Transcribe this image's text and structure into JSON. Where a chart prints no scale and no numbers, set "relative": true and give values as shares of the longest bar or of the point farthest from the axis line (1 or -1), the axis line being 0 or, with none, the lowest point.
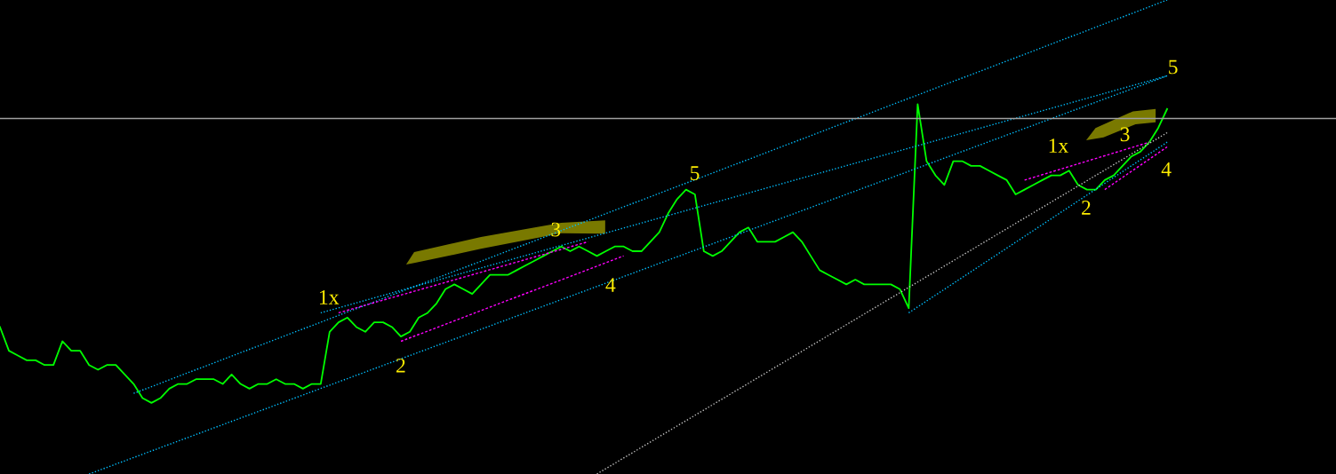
{
  "chart_data": {
    "type": "line",
    "relative": true,
    "categories": [
      null,
      null,
      null,
      null,
      null,
      null,
      null,
      null,
      null,
      null,
      null,
      null,
      null,
      null,
      null,
      null,
      null,
      null,
      null,
      null,
      null,
      null,
      null,
      null,
      null,
      null,
      null,
      null,
      null,
      null,
      null,
      null,
      null,
      null,
      null,
      null,
      null,
      null,
      null,
      null,
      null,
      null,
      null,
      null,
      null,
      null,
      null,
      null,
      null,
      null,
      null,
      null,
      null,
      null,
      null,
      null,
      null,
      null,
      null,
      null,
      null,
      null,
      null,
      null,
      null,
      null,
      null,
      null,
      null,
      null,
      null,
      null,
      null,
      null,
      null,
      null,
      null,
      null,
      null,
      null,
      null,
      null,
      null,
      null,
      null,
      null,
      null,
      null,
      null,
      null,
      null,
      null,
      null,
      null,
      null,
      null,
      null,
      null,
      null,
      null,
      null,
      null,
      null,
      null,
      null,
      null,
      null,
      null,
      null,
      null,
      null,
      null,
      null,
      null,
      null,
      null,
      null,
      null,
      null,
      null,
      null,
      null,
      null,
      null,
      null,
      null,
      null,
      null,
      null,
      null,
      null,
      null
    ],
    "series": [
      {
        "color": "#00ff00",
        "line_style": "solid",
        "values": [
          0.31,
          0.26,
          0.25,
          0.24,
          0.24,
          0.23,
          0.23,
          0.28,
          0.26,
          0.26,
          0.23,
          0.22,
          0.23,
          0.23,
          0.21,
          0.19,
          0.16,
          0.15,
          0.16,
          0.18,
          0.19,
          0.19,
          0.2,
          0.2,
          0.2,
          0.19,
          0.21,
          0.19,
          0.18,
          0.19,
          0.19,
          0.2,
          0.19,
          0.19,
          0.18,
          0.19,
          0.19,
          0.3,
          0.32,
          0.33,
          0.31,
          0.3,
          0.32,
          0.32,
          0.31,
          0.29,
          0.3,
          0.33,
          0.34,
          0.36,
          0.39,
          0.4,
          0.39,
          0.38,
          0.4,
          0.42,
          0.42,
          0.42,
          0.43,
          0.44,
          0.45,
          0.46,
          0.47,
          0.48,
          0.47,
          0.48,
          0.47,
          0.46,
          0.47,
          0.48,
          0.48,
          0.47,
          0.47,
          0.49,
          0.51,
          0.55,
          0.58,
          0.6,
          0.59,
          0.47,
          0.46,
          0.47,
          0.49,
          0.51,
          0.52,
          0.49,
          0.49,
          0.49,
          0.5,
          0.51,
          0.49,
          0.46,
          0.43,
          0.42,
          0.41,
          0.4,
          0.41,
          0.4,
          0.4,
          0.4,
          0.4,
          0.39,
          0.35,
          0.78,
          0.66,
          0.63,
          0.61,
          0.66,
          0.66,
          0.65,
          0.65,
          0.64,
          0.63,
          0.62,
          0.59,
          0.6,
          0.61,
          0.62,
          0.63,
          0.63,
          0.64,
          0.61,
          0.6,
          0.6,
          0.62,
          0.63,
          0.65,
          0.67,
          0.68,
          0.7,
          0.73,
          0.77
        ]
      },
      {
        "color": "#00bfff",
        "line_style": "dotted",
        "values": [
          null,
          null,
          null,
          null,
          null,
          null,
          null,
          null,
          null,
          null,
          null,
          null,
          null,
          null,
          null,
          0.17,
          null,
          null,
          null,
          null,
          null,
          null,
          null,
          null,
          null,
          null,
          null,
          null,
          null,
          null,
          null,
          null,
          null,
          null,
          null,
          null,
          null,
          null,
          null,
          null,
          null,
          null,
          null,
          null,
          null,
          null,
          null,
          null,
          null,
          null,
          null,
          null,
          null,
          null,
          null,
          null,
          null,
          null,
          null,
          null,
          null,
          null,
          null,
          null,
          null,
          null,
          null,
          null,
          null,
          null,
          null,
          null,
          null,
          null,
          null,
          null,
          null,
          null,
          null,
          null,
          null,
          null,
          null,
          null,
          null,
          null,
          null,
          null,
          null,
          null,
          null,
          null,
          null,
          null,
          null,
          null,
          null,
          null,
          null,
          null,
          null,
          null,
          null,
          null,
          null,
          null,
          null,
          null,
          null,
          null,
          null,
          null,
          null,
          null,
          null,
          null,
          null,
          null,
          null,
          null,
          null,
          null,
          null,
          null,
          null,
          null,
          null,
          null,
          null,
          null,
          null,
          1.0
        ]
      },
      {
        "color": "#00bfff",
        "line_style": "dotted",
        "values": [
          null,
          null,
          null,
          null,
          null,
          null,
          null,
          null,
          null,
          null,
          null,
          null,
          null,
          null,
          null,
          null,
          null,
          null,
          null,
          null,
          null,
          null,
          null,
          null,
          null,
          null,
          null,
          null,
          null,
          null,
          null,
          null,
          null,
          null,
          null,
          null,
          0.34,
          null,
          null,
          null,
          null,
          null,
          null,
          null,
          null,
          null,
          null,
          null,
          null,
          null,
          null,
          null,
          null,
          null,
          null,
          null,
          null,
          null,
          null,
          null,
          null,
          null,
          null,
          null,
          null,
          null,
          null,
          null,
          null,
          null,
          null,
          null,
          null,
          null,
          null,
          null,
          null,
          null,
          null,
          null,
          null,
          null,
          null,
          null,
          null,
          null,
          null,
          null,
          null,
          null,
          null,
          null,
          null,
          null,
          null,
          null,
          null,
          null,
          null,
          null,
          null,
          null,
          null,
          null,
          null,
          null,
          null,
          null,
          null,
          null,
          null,
          null,
          null,
          null,
          null,
          null,
          null,
          null,
          null,
          null,
          null,
          null,
          null,
          null,
          null,
          null,
          null,
          null,
          null,
          null,
          null,
          0.84
        ]
      },
      {
        "color": "#00bfff",
        "line_style": "dotted",
        "values": [
          null,
          null,
          null,
          null,
          null,
          null,
          null,
          null,
          null,
          null,
          0.0,
          null,
          null,
          null,
          null,
          null,
          null,
          null,
          null,
          null,
          null,
          null,
          null,
          null,
          null,
          null,
          null,
          null,
          null,
          null,
          null,
          null,
          null,
          null,
          null,
          null,
          null,
          null,
          null,
          null,
          null,
          null,
          null,
          null,
          null,
          null,
          null,
          null,
          null,
          null,
          null,
          null,
          null,
          null,
          null,
          null,
          null,
          null,
          null,
          null,
          null,
          null,
          null,
          null,
          null,
          null,
          null,
          null,
          null,
          null,
          null,
          null,
          null,
          null,
          null,
          null,
          null,
          null,
          null,
          null,
          null,
          null,
          null,
          null,
          null,
          null,
          null,
          null,
          null,
          null,
          null,
          null,
          null,
          null,
          null,
          null,
          null,
          null,
          null,
          null,
          null,
          null,
          null,
          null,
          null,
          null,
          null,
          null,
          null,
          null,
          null,
          null,
          null,
          null,
          null,
          null,
          null,
          null,
          null,
          null,
          null,
          null,
          null,
          null,
          null,
          null,
          null,
          null,
          null,
          null,
          null,
          0.84
        ]
      },
      {
        "color": "#c0c0c0",
        "line_style": "dotted",
        "values": [
          null,
          null,
          null,
          null,
          null,
          null,
          null,
          null,
          null,
          null,
          null,
          null,
          null,
          null,
          null,
          null,
          null,
          null,
          null,
          null,
          null,
          null,
          null,
          null,
          null,
          null,
          null,
          null,
          null,
          null,
          null,
          null,
          null,
          null,
          null,
          null,
          null,
          null,
          null,
          null,
          null,
          null,
          null,
          null,
          null,
          null,
          null,
          null,
          null,
          null,
          null,
          null,
          null,
          null,
          null,
          null,
          null,
          null,
          null,
          null,
          null,
          null,
          null,
          null,
          null,
          null,
          null,
          0.0,
          null,
          null,
          null,
          null,
          null,
          null,
          null,
          null,
          null,
          null,
          null,
          null,
          null,
          null,
          null,
          null,
          null,
          null,
          null,
          null,
          null,
          null,
          null,
          null,
          null,
          null,
          null,
          null,
          null,
          null,
          null,
          null,
          null,
          null,
          null,
          null,
          null,
          null,
          null,
          null,
          null,
          null,
          null,
          null,
          null,
          null,
          null,
          null,
          null,
          null,
          null,
          null,
          null,
          null,
          null,
          null,
          null,
          null,
          null,
          null,
          null,
          null,
          null,
          0.72
        ]
      },
      {
        "color": "#00bfff",
        "line_style": "dotted",
        "values": [
          null,
          null,
          null,
          null,
          null,
          null,
          null,
          null,
          null,
          null,
          null,
          null,
          null,
          null,
          null,
          null,
          null,
          null,
          null,
          null,
          null,
          null,
          null,
          null,
          null,
          null,
          null,
          null,
          null,
          null,
          null,
          null,
          null,
          null,
          null,
          null,
          null,
          null,
          null,
          null,
          null,
          null,
          null,
          null,
          null,
          null,
          null,
          null,
          null,
          null,
          null,
          null,
          null,
          null,
          null,
          null,
          null,
          null,
          null,
          null,
          null,
          null,
          null,
          null,
          null,
          null,
          null,
          null,
          null,
          null,
          null,
          null,
          null,
          null,
          null,
          null,
          null,
          null,
          null,
          null,
          null,
          null,
          null,
          null,
          null,
          null,
          null,
          null,
          null,
          null,
          null,
          null,
          null,
          null,
          null,
          null,
          null,
          null,
          null,
          null,
          null,
          null,
          0.34,
          null,
          null,
          null,
          null,
          null,
          null,
          null,
          null,
          null,
          null,
          null,
          null,
          null,
          null,
          null,
          null,
          null,
          null,
          null,
          null,
          null,
          null,
          null,
          null,
          null,
          null,
          null,
          null,
          0.7
        ]
      },
      {
        "color": "#ff00ff",
        "line_style": "dashed",
        "values": [
          null,
          null,
          null,
          null,
          null,
          null,
          null,
          null,
          null,
          null,
          null,
          null,
          null,
          null,
          null,
          null,
          null,
          null,
          null,
          null,
          null,
          null,
          null,
          null,
          null,
          null,
          null,
          null,
          null,
          null,
          null,
          null,
          null,
          null,
          null,
          null,
          null,
          null,
          0.34,
          null,
          null,
          null,
          null,
          null,
          null,
          null,
          null,
          null,
          null,
          null,
          null,
          null,
          null,
          null,
          null,
          null,
          null,
          null,
          null,
          null,
          null,
          null,
          null,
          null,
          null,
          null,
          0.49,
          null,
          null,
          null,
          null,
          null,
          null,
          null,
          null,
          null,
          null,
          null,
          null,
          null,
          null,
          null,
          null,
          null,
          null,
          null,
          null,
          null,
          null,
          null,
          null,
          null,
          null,
          null,
          null,
          null,
          null,
          null,
          null,
          null,
          null,
          null,
          null,
          null,
          null,
          null,
          null,
          null,
          null,
          null,
          null,
          null,
          null,
          null,
          null,
          null,
          null,
          null,
          null,
          null,
          null,
          null,
          null,
          null,
          null,
          null,
          null,
          null,
          null,
          null,
          null,
          null
        ]
      },
      {
        "color": "#ff00ff",
        "line_style": "dashed",
        "values": [
          null,
          null,
          null,
          null,
          null,
          null,
          null,
          null,
          null,
          null,
          null,
          null,
          null,
          null,
          null,
          null,
          null,
          null,
          null,
          null,
          null,
          null,
          null,
          null,
          null,
          null,
          null,
          null,
          null,
          null,
          null,
          null,
          null,
          null,
          null,
          null,
          null,
          null,
          null,
          null,
          null,
          null,
          null,
          null,
          null,
          0.28,
          null,
          null,
          null,
          null,
          null,
          null,
          null,
          null,
          null,
          null,
          null,
          null,
          null,
          null,
          null,
          null,
          null,
          null,
          null,
          null,
          null,
          null,
          null,
          null,
          0.46,
          null,
          null,
          null,
          null,
          null,
          null,
          null,
          null,
          null,
          null,
          null,
          null,
          null,
          null,
          null,
          null,
          null,
          null,
          null,
          null,
          null,
          null,
          null,
          null,
          null,
          null,
          null,
          null,
          null,
          null,
          null,
          null,
          null,
          null,
          null,
          null,
          null,
          null,
          null,
          null,
          null,
          null,
          null,
          null,
          null,
          null,
          null,
          null,
          null,
          null,
          null,
          null,
          null,
          null,
          null,
          null,
          null,
          null,
          null,
          null,
          null
        ]
      },
      {
        "color": "#ff00ff",
        "line_style": "dashed",
        "values": [
          null,
          null,
          null,
          null,
          null,
          null,
          null,
          null,
          null,
          null,
          null,
          null,
          null,
          null,
          null,
          null,
          null,
          null,
          null,
          null,
          null,
          null,
          null,
          null,
          null,
          null,
          null,
          null,
          null,
          null,
          null,
          null,
          null,
          null,
          null,
          null,
          null,
          null,
          null,
          null,
          null,
          null,
          null,
          null,
          null,
          null,
          null,
          null,
          null,
          null,
          null,
          null,
          null,
          null,
          null,
          null,
          null,
          null,
          null,
          null,
          null,
          null,
          null,
          null,
          null,
          null,
          null,
          null,
          null,
          null,
          null,
          null,
          null,
          null,
          null,
          null,
          null,
          null,
          null,
          null,
          null,
          null,
          null,
          null,
          null,
          null,
          null,
          null,
          null,
          null,
          null,
          null,
          null,
          null,
          null,
          null,
          null,
          null,
          null,
          null,
          null,
          null,
          null,
          null,
          null,
          null,
          null,
          null,
          null,
          null,
          null,
          null,
          null,
          null,
          null,
          0.62,
          null,
          null,
          null,
          null,
          null,
          null,
          null,
          null,
          null,
          null,
          null,
          null,
          null,
          0.7,
          null,
          null
        ]
      },
      {
        "color": "#ff00ff",
        "line_style": "dashed",
        "values": [
          null,
          null,
          null,
          null,
          null,
          null,
          null,
          null,
          null,
          null,
          null,
          null,
          null,
          null,
          null,
          null,
          null,
          null,
          null,
          null,
          null,
          null,
          null,
          null,
          null,
          null,
          null,
          null,
          null,
          null,
          null,
          null,
          null,
          null,
          null,
          null,
          null,
          null,
          null,
          null,
          null,
          null,
          null,
          null,
          null,
          null,
          null,
          null,
          null,
          null,
          null,
          null,
          null,
          null,
          null,
          null,
          null,
          null,
          null,
          null,
          null,
          null,
          null,
          null,
          null,
          null,
          null,
          null,
          null,
          null,
          null,
          null,
          null,
          null,
          null,
          null,
          null,
          null,
          null,
          null,
          null,
          null,
          null,
          null,
          null,
          null,
          null,
          null,
          null,
          null,
          null,
          null,
          null,
          null,
          null,
          null,
          null,
          null,
          null,
          null,
          null,
          null,
          null,
          null,
          null,
          null,
          null,
          null,
          null,
          null,
          null,
          null,
          null,
          null,
          null,
          null,
          null,
          null,
          null,
          null,
          null,
          null,
          null,
          null,
          0.6,
          null,
          null,
          null,
          null,
          null,
          null,
          0.69
        ]
      }
    ],
    "ref_lines": [
      {
        "axis": "y",
        "value": 0.75,
        "color": "#a0a0a0",
        "line_style": "solid"
      }
    ],
    "annotations": [
      "1x",
      "2",
      "3",
      "4",
      "5",
      "1x",
      "2",
      "3",
      "4",
      "5"
    ]
  }
}
